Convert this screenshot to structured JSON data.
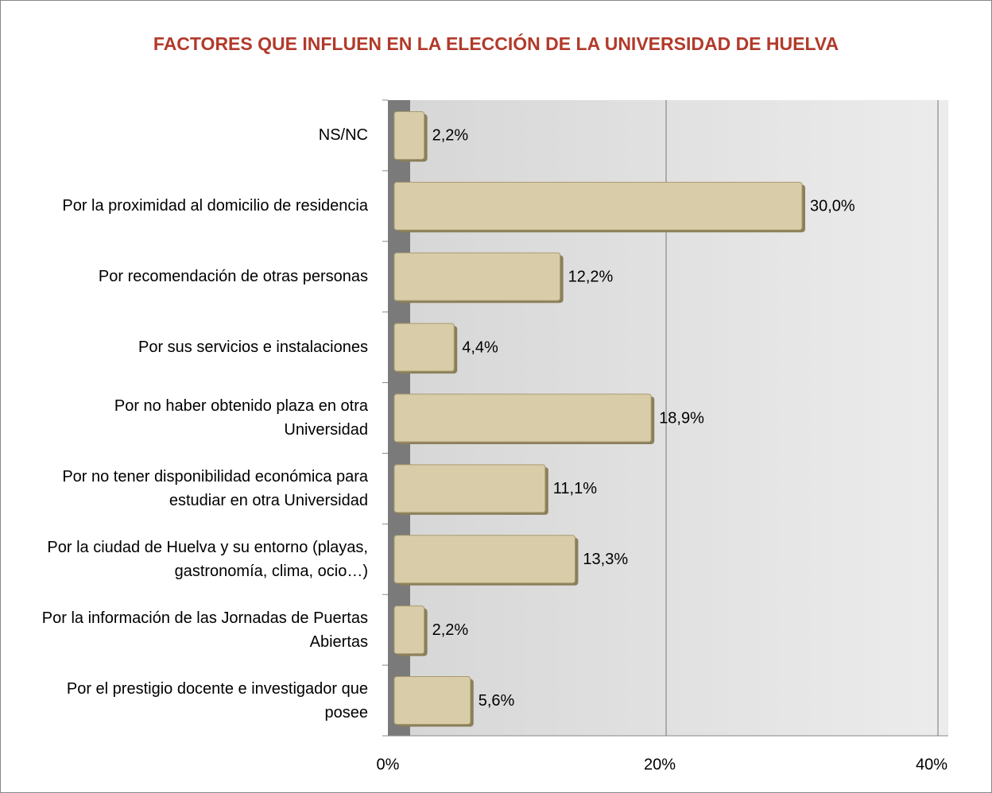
{
  "chart_data": {
    "type": "hbar",
    "title": "FACTORES QUE INFLUEN EN LA ELECCIÓN DE LA UNIVERSIDAD DE HUELVA",
    "categories": [
      "NS/NC",
      "Por la proximidad al domicilio de residencia",
      "Por recomendación de otras personas",
      "Por sus servicios e instalaciones",
      "Por no haber obtenido plaza en otra Universidad",
      "Por no tener disponibilidad económica para estudiar en otra Universidad",
      "Por la ciudad de Huelva y su entorno (playas, gastronomía, clima, ocio…)",
      "Por la información de las Jornadas de Puertas Abiertas",
      "Por el prestigio docente e investigador que posee"
    ],
    "values": [
      2.2,
      30.0,
      12.2,
      4.4,
      18.9,
      11.1,
      13.3,
      2.2,
      5.6
    ],
    "value_labels": [
      "2,2%",
      "30,0%",
      "12,2%",
      "4,4%",
      "18,9%",
      "11,1%",
      "13,3%",
      "2,2%",
      "5,6%"
    ],
    "color": "#d8cda8",
    "xlim": [
      0,
      40
    ],
    "xticks": [
      {
        "value": 0,
        "label": "0%"
      },
      {
        "value": 20,
        "label": "20%"
      },
      {
        "value": 40,
        "label": "40%"
      }
    ],
    "grid": true
  }
}
